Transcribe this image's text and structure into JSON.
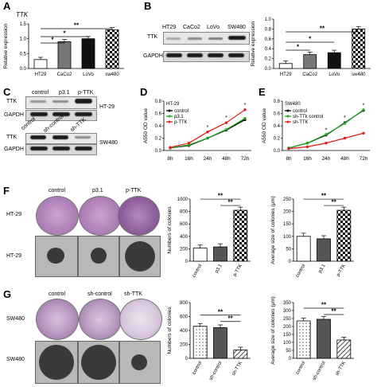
{
  "panels": {
    "A": {
      "label": "A",
      "gene": "TTK",
      "ylabel": "Relative expression"
    },
    "B": {
      "label": "B",
      "blot_lanes": [
        "HT29",
        "CaCo2",
        "LoVo",
        "SW480"
      ],
      "rows": [
        "TTK",
        "GAPDH"
      ],
      "ylabel": "Relative expression"
    },
    "C": {
      "label": "C",
      "lanes": [
        "control",
        "p3.1",
        "p-TTK"
      ],
      "lanes2": [
        "control",
        "sh-control",
        "sh-TTK"
      ],
      "rows": [
        "TTK",
        "GAPDH"
      ],
      "cell1": "HT-29",
      "cell2": "SW480"
    },
    "D": {
      "label": "D",
      "ylabel": "A550 OD value",
      "cell": "HT-29"
    },
    "E": {
      "label": "E",
      "ylabel": "A550 OD value",
      "cell": "SW480"
    },
    "F": {
      "label": "F",
      "cols": [
        "control",
        "p3.1",
        "p-TTK"
      ],
      "rowlabels": [
        "HT-29",
        "HT-29"
      ],
      "ylabel1": "Numbers of colonies",
      "ylabel2": "Average size of colonies (μm)"
    },
    "G": {
      "label": "G",
      "cols": [
        "control",
        "sh-control",
        "sh-TTK"
      ],
      "rowlabels": [
        "SW480",
        "SW480"
      ],
      "ylabel1": "Numbers of colonies",
      "ylabel2": "Average size of colonies (μm)"
    }
  },
  "chart_data": [
    {
      "id": "A",
      "type": "bar",
      "categories": [
        "HT29",
        "CaCo2",
        "LoVo",
        "sw480"
      ],
      "values": [
        0.3,
        0.9,
        1.0,
        1.3
      ],
      "ylim": [
        0,
        1.5
      ],
      "yticks": [
        "0.0",
        "0.5",
        "1.0",
        "1.5"
      ],
      "ylabel": "Relative expression",
      "sig": [
        "*",
        "*",
        "**"
      ],
      "fills": [
        "#ffffff",
        "#777777",
        "#111111",
        "checker"
      ]
    },
    {
      "id": "B",
      "type": "bar",
      "categories": [
        "HT29",
        "CaCo2",
        "LoVo",
        "sw480"
      ],
      "values": [
        0.1,
        0.28,
        0.32,
        0.8
      ],
      "ylim": [
        0,
        1.0
      ],
      "yticks": [
        "0.0",
        "0.2",
        "0.4",
        "0.6",
        "0.8",
        "1.0"
      ],
      "ylabel": "Relative expression",
      "sig": [
        "*",
        "*",
        "**"
      ],
      "fills": [
        "#ffffff",
        "#777777",
        "#111111",
        "checker"
      ]
    },
    {
      "id": "D",
      "type": "line",
      "x": [
        "8h",
        "16h",
        "24h",
        "48h",
        "72h"
      ],
      "ylim": [
        0,
        0.8
      ],
      "yticks": [
        "0.0",
        "0.2",
        "0.4",
        "0.6",
        "0.8"
      ],
      "ylabel": "A550 OD value",
      "series": [
        {
          "name": "control",
          "color": "#000000",
          "values": [
            0.04,
            0.08,
            0.2,
            0.33,
            0.5
          ]
        },
        {
          "name": "p3.1",
          "color": "#1faa1f",
          "values": [
            0.04,
            0.09,
            0.2,
            0.34,
            0.52
          ]
        },
        {
          "name": "p-TTK",
          "color": "#e02020",
          "values": [
            0.05,
            0.12,
            0.3,
            0.45,
            0.66
          ]
        }
      ]
    },
    {
      "id": "E",
      "type": "line",
      "x": [
        "8h",
        "16h",
        "24h",
        "48h",
        "72h"
      ],
      "ylim": [
        0,
        0.8
      ],
      "yticks": [
        "0.0",
        "0.2",
        "0.4",
        "0.6",
        "0.8"
      ],
      "ylabel": "A550 OD value",
      "series": [
        {
          "name": "control",
          "color": "#000000",
          "values": [
            0.04,
            0.12,
            0.25,
            0.45,
            0.65
          ]
        },
        {
          "name": "sh-TTk control",
          "color": "#1faa1f",
          "values": [
            0.04,
            0.12,
            0.26,
            0.44,
            0.66
          ]
        },
        {
          "name": "sh-TTK",
          "color": "#e02020",
          "values": [
            0.03,
            0.06,
            0.12,
            0.2,
            0.28
          ]
        }
      ]
    },
    {
      "id": "F1",
      "type": "bar",
      "categories": [
        "control",
        "p3.1",
        "p-TTK"
      ],
      "values": [
        210,
        230,
        820
      ],
      "ylim": [
        0,
        1000
      ],
      "yticks": [
        "0",
        "200",
        "400",
        "600",
        "800",
        "1000"
      ],
      "ylabel": "Numbers of colonies",
      "sig": [
        "**",
        "**"
      ],
      "fills": [
        "#ffffff",
        "#555555",
        "checker"
      ]
    },
    {
      "id": "F2",
      "type": "bar",
      "categories": [
        "control",
        "p3.1",
        "p-TTK"
      ],
      "values": [
        100,
        90,
        205
      ],
      "ylim": [
        0,
        250
      ],
      "yticks": [
        "0",
        "50",
        "100",
        "150",
        "200",
        "250"
      ],
      "ylabel": "Average size of colonies (μm)",
      "sig": [
        "**",
        "**"
      ],
      "fills": [
        "#ffffff",
        "#555555",
        "checker"
      ]
    },
    {
      "id": "G1",
      "type": "bar",
      "categories": [
        "control",
        "sh-control",
        "sh-TTK"
      ],
      "values": [
        460,
        440,
        120
      ],
      "ylim": [
        0,
        800
      ],
      "yticks": [
        "0",
        "200",
        "400",
        "600",
        "800"
      ],
      "ylabel": "Numbers of colonies",
      "sig": [
        "**",
        "**"
      ],
      "fills": [
        "dots",
        "#555555",
        "hatch"
      ]
    },
    {
      "id": "G2",
      "type": "bar",
      "categories": [
        "control",
        "sh-control",
        "sh-TTK"
      ],
      "values": [
        235,
        245,
        115
      ],
      "ylim": [
        0,
        350
      ],
      "yticks": [
        "0",
        "50",
        "100",
        "150",
        "200",
        "250",
        "300",
        "350"
      ],
      "ylabel": "Average size of colonies (μm)",
      "sig": [
        "**",
        "**"
      ],
      "fills": [
        "dots",
        "#555555",
        "hatch"
      ]
    }
  ]
}
